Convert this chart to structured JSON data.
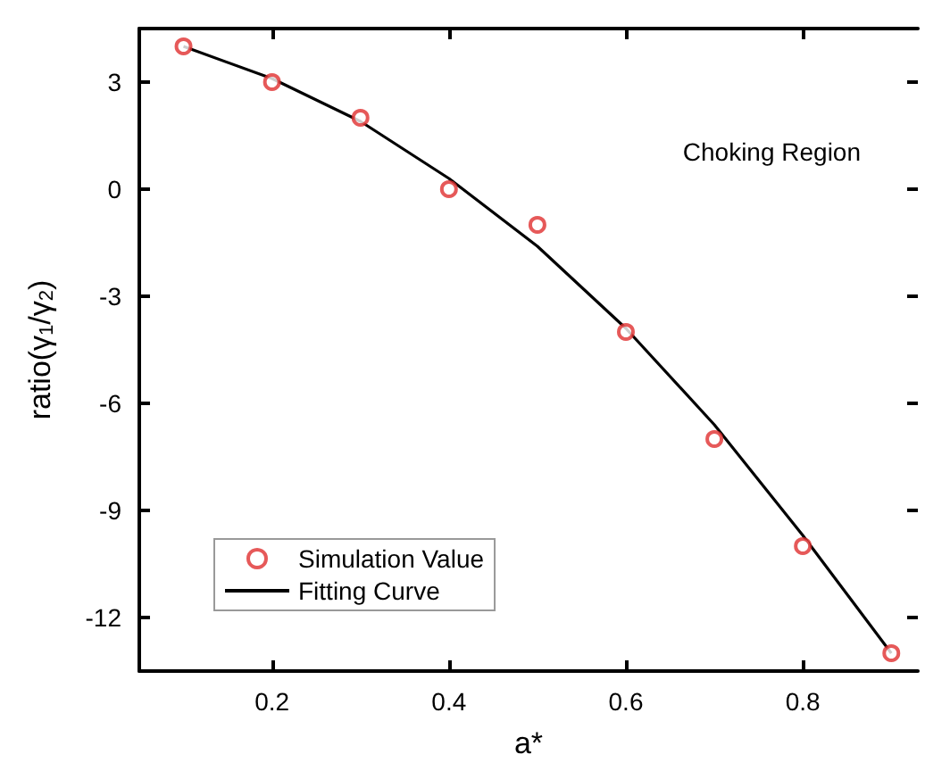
{
  "chart_data": {
    "type": "scatter",
    "xlabel": "a*",
    "ylabel": "ratio(γ$_{1}$/γ$_{2}$)",
    "annotations": [
      "Choking Region"
    ],
    "series": [
      {
        "name": "Simulation Value",
        "color": "#e03030",
        "marker": "circle",
        "x": [
          0.1,
          0.2,
          0.3,
          0.4,
          0.5,
          0.6,
          0.7,
          0.8,
          0.9
        ],
        "values": [
          4,
          3,
          2,
          0,
          -1,
          -4,
          -7,
          -10,
          -13
        ]
      },
      {
        "name": "Fitting Curve",
        "type": "line",
        "color": "#000000",
        "line_style": "solid",
        "x": [
          0.1,
          0.2,
          0.3,
          0.4,
          0.5,
          0.6,
          0.7,
          0.8,
          0.9
        ],
        "values": [
          4,
          3.1,
          1.9,
          0.3,
          -1.6,
          -3.9,
          -6.6,
          -9.7,
          -13
        ]
      }
    ],
    "xlim": [
      0.05,
      0.93
    ],
    "xticks": [
      0.2,
      0.4,
      0.6,
      0.8
    ],
    "ylim": [
      -13.5,
      4.5
    ],
    "yticks": [
      -12,
      -9,
      -6,
      -3,
      0,
      3
    ],
    "grid": false,
    "legend": "bottom left"
  }
}
